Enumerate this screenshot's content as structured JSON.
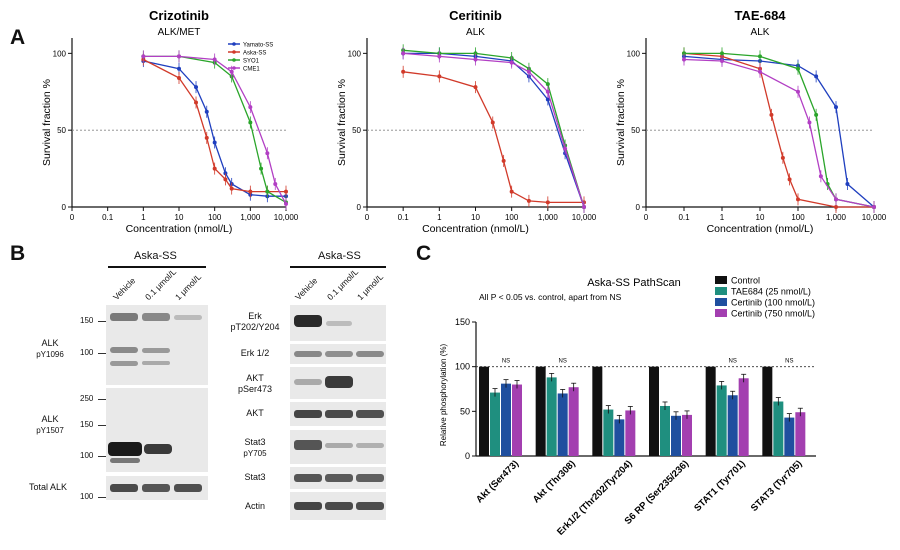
{
  "panels": {
    "a": "A",
    "b": "B",
    "c": "C"
  },
  "chart_data": [
    {
      "type": "line",
      "title": "Crizotinib",
      "subtitle": "ALK/MET",
      "xlabel": "Concentration (nmol/L)",
      "ylabel": "Survival fraction %",
      "xscale": "log",
      "xlim": [
        0,
        10000
      ],
      "ylim": [
        0,
        110
      ],
      "xticks": [
        "0",
        "0.1",
        "1",
        "10",
        "100",
        "1,000",
        "10,000"
      ],
      "yticks": [
        "0",
        "50",
        "100"
      ],
      "legend": "top-right",
      "reference_line": 50,
      "series": [
        {
          "name": "Yamato-SS",
          "color": "#1f3fbf",
          "x": [
            1,
            10,
            30,
            60,
            100,
            200,
            300,
            1000,
            3000,
            10000
          ],
          "y": [
            95,
            90,
            78,
            62,
            42,
            22,
            15,
            8,
            7,
            7
          ]
        },
        {
          "name": "Aska-SS",
          "color": "#d13a2a",
          "x": [
            1,
            10,
            30,
            60,
            100,
            200,
            300,
            1000,
            3000,
            10000
          ],
          "y": [
            96,
            84,
            68,
            45,
            25,
            18,
            12,
            10,
            10,
            10
          ]
        },
        {
          "name": "SYO1",
          "color": "#2aa52a",
          "x": [
            1,
            10,
            100,
            300,
            1000,
            2000,
            3000,
            10000
          ],
          "y": [
            98,
            98,
            94,
            85,
            55,
            25,
            10,
            3
          ]
        },
        {
          "name": "CME1",
          "color": "#b23fc4",
          "x": [
            1,
            10,
            100,
            300,
            1000,
            3000,
            5000,
            10000
          ],
          "y": [
            98,
            98,
            96,
            88,
            65,
            35,
            15,
            2
          ]
        }
      ]
    },
    {
      "type": "line",
      "title": "Ceritinib",
      "subtitle": "ALK",
      "xlabel": "Concentration (nmol/L)",
      "ylabel": "Survival fraction %",
      "xscale": "log",
      "xlim": [
        0,
        10000
      ],
      "ylim": [
        0,
        110
      ],
      "xticks": [
        "0",
        "0.1",
        "1",
        "10",
        "100",
        "1,000",
        "10,000"
      ],
      "yticks": [
        "0",
        "50",
        "100"
      ],
      "reference_line": 50,
      "series": [
        {
          "name": "Yamato-SS",
          "color": "#1f3fbf",
          "x": [
            0.1,
            1,
            10,
            100,
            300,
            1000,
            3000,
            10000
          ],
          "y": [
            100,
            100,
            98,
            95,
            85,
            70,
            35,
            0
          ]
        },
        {
          "name": "Aska-SS",
          "color": "#d13a2a",
          "x": [
            0.1,
            1,
            10,
            30,
            60,
            100,
            300,
            1000,
            10000
          ],
          "y": [
            88,
            85,
            78,
            55,
            30,
            10,
            4,
            3,
            3
          ]
        },
        {
          "name": "SYO1",
          "color": "#2aa52a",
          "x": [
            0.1,
            1,
            10,
            100,
            300,
            1000,
            3000,
            10000
          ],
          "y": [
            102,
            100,
            100,
            97,
            90,
            80,
            40,
            0
          ]
        },
        {
          "name": "CME1",
          "color": "#b23fc4",
          "x": [
            0.1,
            1,
            10,
            100,
            300,
            1000,
            3000,
            10000
          ],
          "y": [
            100,
            98,
            96,
            94,
            88,
            75,
            38,
            0
          ]
        }
      ]
    },
    {
      "type": "line",
      "title": "TAE-684",
      "subtitle": "ALK",
      "xlabel": "Concentration (nmol/L)",
      "ylabel": "Survival fraction %",
      "xscale": "log",
      "xlim": [
        0,
        10000
      ],
      "ylim": [
        0,
        110
      ],
      "xticks": [
        "0",
        "0.1",
        "1",
        "10",
        "100",
        "1,000",
        "10,000"
      ],
      "yticks": [
        "0",
        "50",
        "100"
      ],
      "reference_line": 50,
      "series": [
        {
          "name": "Yamato-SS",
          "color": "#1f3fbf",
          "x": [
            0.1,
            1,
            10,
            100,
            300,
            1000,
            2000,
            10000
          ],
          "y": [
            98,
            96,
            95,
            92,
            85,
            65,
            15,
            0
          ]
        },
        {
          "name": "Aska-SS",
          "color": "#d13a2a",
          "x": [
            0.1,
            1,
            10,
            20,
            40,
            60,
            100,
            1000,
            10000
          ],
          "y": [
            100,
            98,
            90,
            60,
            32,
            18,
            5,
            0,
            0
          ]
        },
        {
          "name": "SYO1",
          "color": "#2aa52a",
          "x": [
            0.1,
            1,
            10,
            100,
            300,
            600,
            1000,
            10000
          ],
          "y": [
            100,
            100,
            98,
            90,
            60,
            15,
            5,
            0
          ]
        },
        {
          "name": "CME1",
          "color": "#b23fc4",
          "x": [
            0.1,
            1,
            10,
            100,
            200,
            400,
            1000,
            10000
          ],
          "y": [
            96,
            95,
            88,
            75,
            55,
            20,
            5,
            0
          ]
        }
      ]
    },
    {
      "type": "bar",
      "title": "Aska-SS PathScan",
      "annotation": "All P < 0.05 vs. control, apart from NS",
      "ylabel": "Relative phosphorylation (%)",
      "ylim": [
        0,
        150
      ],
      "yticks": [
        "0",
        "50",
        "100",
        "150"
      ],
      "reference_line": 100,
      "legend": "top-right",
      "categories": [
        "Akt (Ser473)",
        "Akt (Thr308)",
        "Erk1/2 (Thr202/Tyr204)",
        "S6 RP (Ser235/236)",
        "STAT1 (Tyr701)",
        "STAT3 (Tyr705)"
      ],
      "series": [
        {
          "name": "Control",
          "color": "#111111",
          "values": [
            100,
            100,
            100,
            100,
            100,
            100
          ]
        },
        {
          "name": "TAE684 (25 nmol/L)",
          "color": "#1f8f7f",
          "values": [
            71,
            88,
            52,
            56,
            79,
            61
          ]
        },
        {
          "name": "Certinib (100 nmol/L)",
          "color": "#1f4f9f",
          "values": [
            81,
            70,
            41,
            45,
            68,
            43
          ]
        },
        {
          "name": "Certinib (750 nmol/L)",
          "color": "#a33fb0",
          "values": [
            80,
            77,
            51,
            46,
            87,
            49
          ]
        }
      ],
      "ns_labels": [
        "NS",
        "NS",
        "NS",
        "NS"
      ]
    }
  ],
  "blot_left": {
    "cell_line": "Aska-SS",
    "lanes": [
      "Vehicle",
      "0.1 μmol/L",
      "1 μmol/L"
    ],
    "rows": [
      {
        "label1": "ALK",
        "label2": "pY1096",
        "mw": [
          "150",
          "100"
        ]
      },
      {
        "label1": "ALK",
        "label2": "pY1507",
        "mw": [
          "250",
          "150",
          "100"
        ]
      },
      {
        "label1": "Total ALK",
        "label2": "",
        "mw": [
          "100"
        ]
      }
    ]
  },
  "blot_right": {
    "cell_line": "Aska-SS",
    "lanes": [
      "Vehicle",
      "0.1 μmol/L",
      "1 μmol/L"
    ],
    "rows": [
      {
        "label1": "Erk",
        "label2": "pT202/Y204"
      },
      {
        "label1": "Erk 1/2",
        "label2": ""
      },
      {
        "label1": "AKT",
        "label2": "pSer473"
      },
      {
        "label1": "AKT",
        "label2": ""
      },
      {
        "label1": "Stat3",
        "label2": "pY705"
      },
      {
        "label1": "Stat3",
        "label2": ""
      },
      {
        "label1": "Actin",
        "label2": ""
      }
    ]
  }
}
